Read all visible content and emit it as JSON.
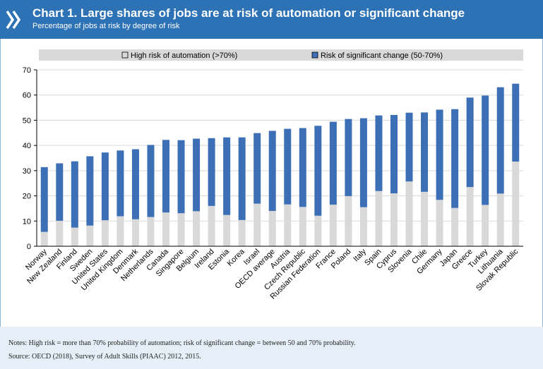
{
  "header": {
    "title": "Chart 1. Large shares of jobs are at risk of automation or significant change",
    "subtitle": "Percentage of jobs at risk by degree of risk",
    "logo_icon": "oecd-chevrons-icon"
  },
  "colors": {
    "header_bg": "#2d72b5",
    "high_risk": "#d9d9d9",
    "significant_change": "#3d6fb6",
    "legend_band": "#d9d9d9",
    "notes_bg": "#e6eff7"
  },
  "notes": {
    "definitions": "Notes: High risk = more than 70% probability of automation; risk of significant change = between 50 and 70% probability.",
    "source": "Source: OECD (2018), Survey of Adult Skills (PIAAC) 2012, 2015."
  },
  "chart_data": {
    "type": "bar",
    "stacked": true,
    "title": "Chart 1. Large shares of jobs are at risk of automation or significant change",
    "subtitle": "Percentage of jobs at risk by degree of risk",
    "ylim": [
      0,
      70
    ],
    "yticks": [
      0,
      10,
      20,
      30,
      40,
      50,
      60,
      70
    ],
    "grid": true,
    "legend_position": "top",
    "categories": [
      "Norway",
      "New Zealand",
      "Finland",
      "Sweden",
      "United States",
      "United Kingdom",
      "Denmark",
      "Netherlands",
      "Canada",
      "Singapore",
      "Belgium",
      "Ireland",
      "Estonia",
      "Korea",
      "Israel",
      "OECD average",
      "Austria",
      "Czech Republic",
      "Russian Federation",
      "France",
      "Poland",
      "Italy",
      "Spain",
      "Cyprus",
      "Slovenia",
      "Chile",
      "Germany",
      "Japan",
      "Greece",
      "Turkey",
      "Lithuania",
      "Slovak Republic"
    ],
    "series": [
      {
        "name": "High risk of automation (>70%)",
        "values": [
          5.7,
          10.1,
          7.4,
          8.2,
          10.3,
          11.9,
          10.7,
          11.6,
          13.4,
          13.1,
          13.9,
          16.0,
          12.4,
          10.4,
          16.9,
          14.0,
          16.6,
          15.6,
          12.1,
          16.5,
          19.9,
          15.5,
          21.9,
          21.0,
          25.7,
          21.6,
          18.4,
          15.2,
          23.5,
          16.4,
          20.9,
          33.6
        ]
      },
      {
        "name": "Risk of significant change (50-70%)",
        "values": [
          25.7,
          22.8,
          26.3,
          27.5,
          26.9,
          26.1,
          27.8,
          28.6,
          28.8,
          29.0,
          28.8,
          26.9,
          30.8,
          32.8,
          28.0,
          31.8,
          30.0,
          31.3,
          35.7,
          32.9,
          30.6,
          35.3,
          30.0,
          31.1,
          27.3,
          31.5,
          35.8,
          39.2,
          35.5,
          43.4,
          42.2,
          30.9
        ]
      }
    ]
  }
}
